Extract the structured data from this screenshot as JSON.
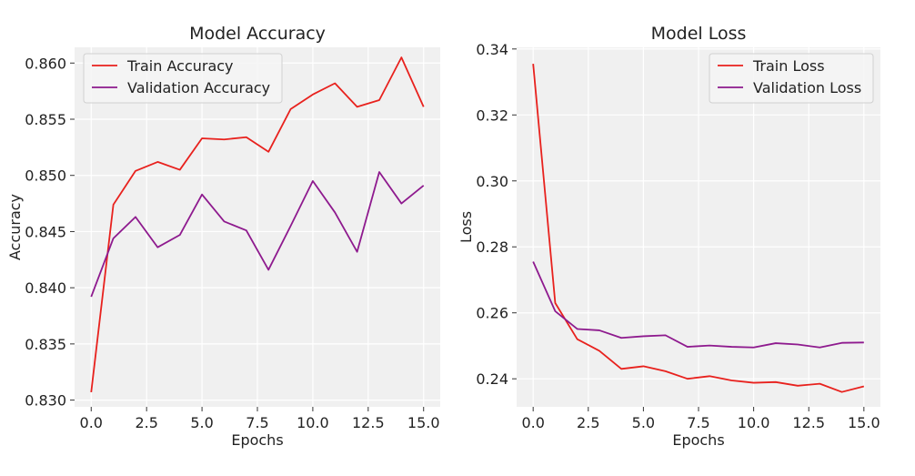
{
  "chart_data": [
    {
      "type": "line",
      "title": "Model Accuracy",
      "xlabel": "Epochs",
      "ylabel": "Accuracy",
      "xlim": [
        -0.75,
        15.75
      ],
      "ylim": [
        0.8294,
        0.8614
      ],
      "xticks": [
        0.0,
        2.5,
        5.0,
        7.5,
        10.0,
        12.5,
        15.0
      ],
      "xtick_labels": [
        "0.0",
        "2.5",
        "5.0",
        "7.5",
        "10.0",
        "12.5",
        "15.0"
      ],
      "yticks": [
        0.83,
        0.835,
        0.84,
        0.845,
        0.85,
        0.855,
        0.86
      ],
      "ytick_labels": [
        "0.830",
        "0.835",
        "0.840",
        "0.845",
        "0.850",
        "0.855",
        "0.860"
      ],
      "grid": true,
      "legend_position": "top-left",
      "x": [
        0,
        1,
        2,
        3,
        4,
        5,
        6,
        7,
        8,
        9,
        10,
        11,
        12,
        13,
        14,
        15
      ],
      "series": [
        {
          "name": "Train Accuracy",
          "color": "#e8211d",
          "values": [
            0.8307,
            0.8474,
            0.8504,
            0.8512,
            0.8505,
            0.8533,
            0.8532,
            0.8534,
            0.8521,
            0.8559,
            0.8572,
            0.8582,
            0.8561,
            0.8567,
            0.8605,
            0.8561
          ]
        },
        {
          "name": "Validation Accuracy",
          "color": "#8e1a8e",
          "values": [
            0.8392,
            0.8444,
            0.8463,
            0.8436,
            0.8447,
            0.8483,
            0.8459,
            0.8451,
            0.8416,
            0.8455,
            0.8495,
            0.8467,
            0.8432,
            0.8503,
            0.8475,
            0.8491
          ]
        }
      ]
    },
    {
      "type": "line",
      "title": "Model Loss",
      "xlabel": "Epochs",
      "ylabel": "Loss",
      "xlim": [
        -0.75,
        15.75
      ],
      "ylim": [
        0.2315,
        0.3405
      ],
      "xticks": [
        0.0,
        2.5,
        5.0,
        7.5,
        10.0,
        12.5,
        15.0
      ],
      "xtick_labels": [
        "0.0",
        "2.5",
        "5.0",
        "7.5",
        "10.0",
        "12.5",
        "15.0"
      ],
      "yticks": [
        0.24,
        0.26,
        0.28,
        0.3,
        0.32,
        0.34
      ],
      "ytick_labels": [
        "0.24",
        "0.26",
        "0.28",
        "0.30",
        "0.32",
        "0.34"
      ],
      "grid": true,
      "legend_position": "top-right",
      "x": [
        0,
        1,
        2,
        3,
        4,
        5,
        6,
        7,
        8,
        9,
        10,
        11,
        12,
        13,
        14,
        15
      ],
      "series": [
        {
          "name": "Train Loss",
          "color": "#e8211d",
          "values": [
            0.3355,
            0.263,
            0.252,
            0.2485,
            0.243,
            0.2438,
            0.2423,
            0.24,
            0.2408,
            0.2395,
            0.2388,
            0.239,
            0.2379,
            0.2385,
            0.236,
            0.2377
          ]
        },
        {
          "name": "Validation Loss",
          "color": "#8e1a8e",
          "values": [
            0.2755,
            0.2605,
            0.2551,
            0.2547,
            0.2524,
            0.2529,
            0.2532,
            0.2497,
            0.2501,
            0.2497,
            0.2495,
            0.2508,
            0.2504,
            0.2495,
            0.2509,
            0.251
          ]
        }
      ]
    }
  ]
}
